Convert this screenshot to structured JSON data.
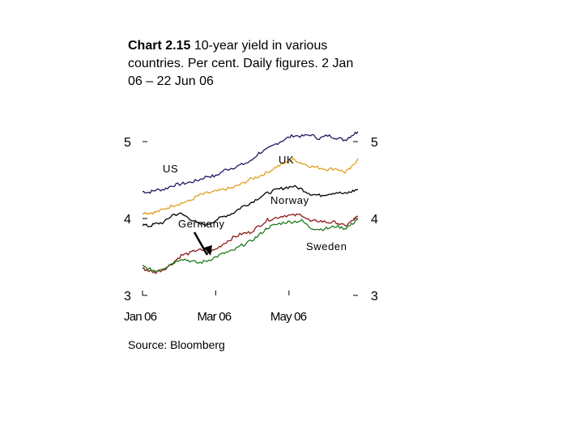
{
  "title": {
    "prefix": "Chart 2.15",
    "text": "10-year yield in various countries. Per cent. Daily figures. 2 Jan 06 – 22 Jun 06"
  },
  "source": "Source: Bloomberg",
  "chart_data": {
    "type": "line",
    "title": "Chart 2.15 10-year yield in various countries. Per cent. Daily figures. 2 Jan 06 – 22 Jun 06",
    "xlabel": "",
    "ylabel": "",
    "ylim": [
      3,
      5
    ],
    "yticks": [
      3,
      4,
      5
    ],
    "ytick_labels_left": [
      "3",
      "4",
      "5"
    ],
    "ytick_labels_right": [
      "3",
      "4",
      "5"
    ],
    "xticks": [
      {
        "t": 0.0,
        "label": "Jan 06"
      },
      {
        "t": 0.34,
        "label": "Mar 06"
      },
      {
        "t": 0.68,
        "label": "May 06"
      }
    ],
    "x_domain_days": [
      0,
      1
    ],
    "series": [
      {
        "name": "US",
        "color": "#1a1a5e",
        "points": [
          [
            0,
            4.35
          ],
          [
            0.03,
            4.34
          ],
          [
            0.06,
            4.37
          ],
          [
            0.1,
            4.38
          ],
          [
            0.14,
            4.43
          ],
          [
            0.18,
            4.45
          ],
          [
            0.22,
            4.47
          ],
          [
            0.26,
            4.5
          ],
          [
            0.3,
            4.55
          ],
          [
            0.34,
            4.55
          ],
          [
            0.38,
            4.63
          ],
          [
            0.42,
            4.66
          ],
          [
            0.46,
            4.7
          ],
          [
            0.5,
            4.74
          ],
          [
            0.54,
            4.85
          ],
          [
            0.58,
            4.9
          ],
          [
            0.62,
            4.97
          ],
          [
            0.66,
            5.03
          ],
          [
            0.7,
            5.08
          ],
          [
            0.74,
            5.07
          ],
          [
            0.78,
            5.09
          ],
          [
            0.82,
            5.04
          ],
          [
            0.86,
            5.08
          ],
          [
            0.9,
            5.05
          ],
          [
            0.94,
            5.02
          ],
          [
            0.97,
            5.08
          ],
          [
            1.0,
            5.13
          ]
        ]
      },
      {
        "name": "UK",
        "color": "#e0a020",
        "points": [
          [
            0,
            4.08
          ],
          [
            0.03,
            4.07
          ],
          [
            0.06,
            4.08
          ],
          [
            0.1,
            4.12
          ],
          [
            0.14,
            4.17
          ],
          [
            0.18,
            4.2
          ],
          [
            0.22,
            4.23
          ],
          [
            0.26,
            4.3
          ],
          [
            0.3,
            4.33
          ],
          [
            0.34,
            4.35
          ],
          [
            0.38,
            4.38
          ],
          [
            0.42,
            4.4
          ],
          [
            0.46,
            4.45
          ],
          [
            0.5,
            4.51
          ],
          [
            0.54,
            4.55
          ],
          [
            0.58,
            4.6
          ],
          [
            0.62,
            4.67
          ],
          [
            0.66,
            4.72
          ],
          [
            0.7,
            4.77
          ],
          [
            0.74,
            4.72
          ],
          [
            0.78,
            4.68
          ],
          [
            0.82,
            4.66
          ],
          [
            0.86,
            4.64
          ],
          [
            0.9,
            4.65
          ],
          [
            0.94,
            4.6
          ],
          [
            0.97,
            4.66
          ],
          [
            1.0,
            4.78
          ]
        ]
      },
      {
        "name": "Norway",
        "color": "#000000",
        "points": [
          [
            0,
            3.92
          ],
          [
            0.03,
            3.9
          ],
          [
            0.06,
            3.93
          ],
          [
            0.1,
            3.95
          ],
          [
            0.14,
            4.05
          ],
          [
            0.18,
            4.06
          ],
          [
            0.22,
            4.0
          ],
          [
            0.26,
            3.93
          ],
          [
            0.3,
            3.92
          ],
          [
            0.34,
            3.98
          ],
          [
            0.38,
            4.03
          ],
          [
            0.42,
            4.07
          ],
          [
            0.46,
            4.15
          ],
          [
            0.5,
            4.2
          ],
          [
            0.54,
            4.27
          ],
          [
            0.58,
            4.33
          ],
          [
            0.62,
            4.37
          ],
          [
            0.66,
            4.4
          ],
          [
            0.7,
            4.42
          ],
          [
            0.74,
            4.38
          ],
          [
            0.78,
            4.32
          ],
          [
            0.82,
            4.3
          ],
          [
            0.86,
            4.32
          ],
          [
            0.9,
            4.34
          ],
          [
            0.94,
            4.32
          ],
          [
            0.97,
            4.35
          ],
          [
            1.0,
            4.38
          ]
        ]
      },
      {
        "name": "Germany",
        "color": "#8b1a1a",
        "points": [
          [
            0,
            3.35
          ],
          [
            0.03,
            3.32
          ],
          [
            0.06,
            3.3
          ],
          [
            0.1,
            3.34
          ],
          [
            0.14,
            3.42
          ],
          [
            0.18,
            3.52
          ],
          [
            0.22,
            3.55
          ],
          [
            0.26,
            3.6
          ],
          [
            0.3,
            3.55
          ],
          [
            0.34,
            3.6
          ],
          [
            0.38,
            3.68
          ],
          [
            0.42,
            3.75
          ],
          [
            0.46,
            3.8
          ],
          [
            0.5,
            3.82
          ],
          [
            0.54,
            3.9
          ],
          [
            0.58,
            3.98
          ],
          [
            0.62,
            4.01
          ],
          [
            0.66,
            4.04
          ],
          [
            0.7,
            4.04
          ],
          [
            0.74,
            4.05
          ],
          [
            0.78,
            3.96
          ],
          [
            0.82,
            3.97
          ],
          [
            0.86,
            3.95
          ],
          [
            0.9,
            3.95
          ],
          [
            0.94,
            3.9
          ],
          [
            0.97,
            3.96
          ],
          [
            1.0,
            4.03
          ]
        ]
      },
      {
        "name": "Sweden",
        "color": "#1e7a1e",
        "points": [
          [
            0,
            3.38
          ],
          [
            0.03,
            3.34
          ],
          [
            0.06,
            3.32
          ],
          [
            0.1,
            3.36
          ],
          [
            0.14,
            3.42
          ],
          [
            0.18,
            3.48
          ],
          [
            0.22,
            3.45
          ],
          [
            0.26,
            3.42
          ],
          [
            0.3,
            3.45
          ],
          [
            0.34,
            3.5
          ],
          [
            0.38,
            3.55
          ],
          [
            0.42,
            3.58
          ],
          [
            0.46,
            3.65
          ],
          [
            0.5,
            3.7
          ],
          [
            0.54,
            3.78
          ],
          [
            0.58,
            3.88
          ],
          [
            0.62,
            3.92
          ],
          [
            0.66,
            3.95
          ],
          [
            0.7,
            3.96
          ],
          [
            0.74,
            3.97
          ],
          [
            0.78,
            3.88
          ],
          [
            0.82,
            3.86
          ],
          [
            0.86,
            3.87
          ],
          [
            0.9,
            3.9
          ],
          [
            0.94,
            3.87
          ],
          [
            0.97,
            3.92
          ],
          [
            1.0,
            4.0
          ]
        ]
      }
    ],
    "annotations": [
      "US",
      "UK",
      "Norway",
      "Germany",
      "Sweden"
    ]
  }
}
